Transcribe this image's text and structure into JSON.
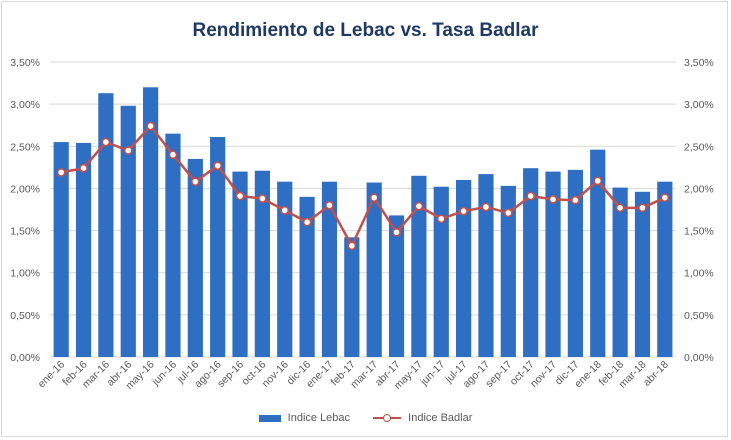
{
  "chart_data": {
    "type": "bar",
    "title": "Rendimiento de Lebac vs. Tasa Badlar",
    "categories": [
      "ene-16",
      "feb-16",
      "mar-16",
      "abr-16",
      "may-16",
      "jun-16",
      "jul-16",
      "ago-16",
      "sep-16",
      "oct-16",
      "nov-16",
      "dic-16",
      "ene-17",
      "feb-17",
      "mar-17",
      "abr-17",
      "may-17",
      "jun-17",
      "jul-17",
      "ago-17",
      "sep-17",
      "oct-17",
      "nov-17",
      "dic-17",
      "ene-18",
      "feb-18",
      "mar-18",
      "abr-18"
    ],
    "series": [
      {
        "name": "Indice Lebac",
        "type": "bar",
        "color": "#2e6fc4",
        "values": [
          2.55,
          2.54,
          3.13,
          2.98,
          3.2,
          2.65,
          2.35,
          2.61,
          2.2,
          2.21,
          2.08,
          1.9,
          2.08,
          1.42,
          2.07,
          1.68,
          2.15,
          2.02,
          2.1,
          2.17,
          2.03,
          2.24,
          2.2,
          2.22,
          2.46,
          2.01,
          1.96,
          2.08
        ]
      },
      {
        "name": "Indice Badlar",
        "type": "line",
        "color": "#c0504d",
        "values": [
          2.19,
          2.24,
          2.55,
          2.45,
          2.74,
          2.4,
          2.08,
          2.27,
          1.91,
          1.88,
          1.74,
          1.6,
          1.8,
          1.32,
          1.89,
          1.48,
          1.79,
          1.64,
          1.73,
          1.78,
          1.71,
          1.91,
          1.87,
          1.86,
          2.09,
          1.77,
          1.77,
          1.89
        ]
      }
    ],
    "ylim": [
      0,
      3.5
    ],
    "yticks": [
      "0,00%",
      "0,50%",
      "1,00%",
      "1,50%",
      "2,00%",
      "2,50%",
      "3,00%",
      "3,50%"
    ],
    "secondary_yticks": [
      "0,00%",
      "0,50%",
      "1,00%",
      "1,50%",
      "2,00%",
      "2,50%",
      "3,00%",
      "3,50%"
    ],
    "xlabel": "",
    "ylabel": "",
    "grid": true,
    "legend_position": "bottom"
  }
}
